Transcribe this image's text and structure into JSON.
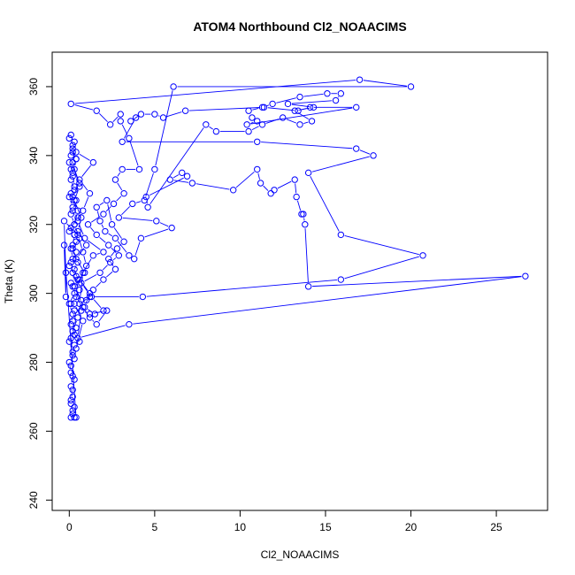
{
  "chart_data": {
    "type": "scatter",
    "title": "ATOM4 Northbound Cl2_NOAACIMS",
    "xlabel": "Cl2_NOAACIMS",
    "ylabel": "Theta (K)",
    "xlim": [
      -1,
      28
    ],
    "ylim": [
      237,
      370
    ],
    "xticks": [
      0,
      5,
      10,
      15,
      20,
      25
    ],
    "yticks": [
      240,
      260,
      280,
      300,
      320,
      340,
      360
    ],
    "grid": false,
    "legend": "none",
    "color": "#0000ff",
    "marker": "open-circle",
    "connect_points": true,
    "series": [
      {
        "values": [
          [
            0.1,
            264
          ],
          [
            0.3,
            264
          ],
          [
            0.2,
            266
          ],
          [
            0.1,
            268
          ],
          [
            0.2,
            270
          ],
          [
            0.1,
            273
          ],
          [
            0.2,
            276
          ],
          [
            0.1,
            279
          ],
          [
            0.3,
            281
          ],
          [
            0.2,
            283
          ],
          [
            0.0,
            286
          ],
          [
            0.3,
            288
          ],
          [
            0.1,
            291
          ],
          [
            0.2,
            294
          ],
          [
            0.0,
            297
          ],
          [
            0.3,
            300
          ],
          [
            0.1,
            303
          ],
          [
            0.4,
            305
          ],
          [
            0.0,
            308
          ],
          [
            0.2,
            310
          ],
          [
            0.1,
            313
          ],
          [
            0.4,
            315
          ],
          [
            0.0,
            318
          ],
          [
            0.3,
            320
          ],
          [
            0.1,
            323
          ],
          [
            0.2,
            325
          ],
          [
            0.0,
            328
          ],
          [
            0.3,
            330
          ],
          [
            0.1,
            333
          ],
          [
            0.2,
            335
          ],
          [
            0.0,
            338
          ],
          [
            0.1,
            340
          ],
          [
            0.2,
            343
          ],
          [
            0.0,
            345
          ],
          [
            0.1,
            346
          ],
          [
            0.3,
            344
          ],
          [
            0.2,
            341
          ],
          [
            0.4,
            339
          ],
          [
            0.1,
            336
          ],
          [
            0.2,
            334
          ],
          [
            0.3,
            331
          ],
          [
            0.1,
            329
          ],
          [
            0.4,
            327
          ],
          [
            0.2,
            324
          ],
          [
            0.5,
            322
          ],
          [
            0.1,
            319
          ],
          [
            0.3,
            317
          ],
          [
            0.2,
            314
          ],
          [
            0.4,
            312
          ],
          [
            0.1,
            309
          ],
          [
            0.3,
            307
          ],
          [
            0.5,
            304
          ],
          [
            0.2,
            302
          ],
          [
            0.4,
            299
          ],
          [
            0.1,
            297
          ],
          [
            0.3,
            295
          ],
          [
            0.2,
            292
          ],
          [
            0.4,
            290
          ],
          [
            0.1,
            287
          ],
          [
            0.3,
            285
          ],
          [
            0.2,
            282
          ],
          [
            0.0,
            280
          ],
          [
            0.1,
            277
          ],
          [
            0.3,
            275
          ],
          [
            0.2,
            272
          ],
          [
            0.1,
            269
          ],
          [
            0.3,
            267
          ],
          [
            0.2,
            265
          ],
          [
            0.4,
            264
          ],
          [
            -0.3,
            314
          ],
          [
            -0.2,
            299
          ],
          [
            -0.2,
            306
          ],
          [
            -0.3,
            321
          ],
          [
            0.5,
            317
          ],
          [
            0.8,
            312
          ],
          [
            1.0,
            308
          ],
          [
            0.6,
            304
          ],
          [
            1.2,
            300
          ],
          [
            0.9,
            296
          ],
          [
            1.5,
            294
          ],
          [
            2.0,
            295
          ],
          [
            1.3,
            299
          ],
          [
            0.7,
            303
          ],
          [
            1.8,
            306
          ],
          [
            2.4,
            309
          ],
          [
            2.9,
            311
          ],
          [
            2.3,
            314
          ],
          [
            1.6,
            317
          ],
          [
            1.1,
            320
          ],
          [
            2.0,
            323
          ],
          [
            2.6,
            326
          ],
          [
            3.2,
            329
          ],
          [
            2.7,
            333
          ],
          [
            3.1,
            336
          ],
          [
            4.1,
            336
          ],
          [
            3.5,
            345
          ],
          [
            3.0,
            350
          ],
          [
            3.0,
            352
          ],
          [
            2.4,
            349
          ],
          [
            1.6,
            353
          ],
          [
            0.1,
            355
          ],
          [
            17.0,
            362
          ],
          [
            20.0,
            360
          ],
          [
            6.1,
            360
          ],
          [
            5.0,
            336
          ],
          [
            4.4,
            327
          ],
          [
            3.7,
            326
          ],
          [
            2.9,
            322
          ],
          [
            5.1,
            321
          ],
          [
            6.0,
            319
          ],
          [
            4.2,
            316
          ],
          [
            3.8,
            310
          ],
          [
            3.5,
            311
          ],
          [
            2.7,
            316
          ],
          [
            2.1,
            318
          ],
          [
            1.8,
            321
          ],
          [
            1.6,
            325
          ],
          [
            2.2,
            327
          ],
          [
            2.5,
            320
          ],
          [
            3.2,
            315
          ],
          [
            2.8,
            313
          ],
          [
            2.3,
            310
          ],
          [
            2.7,
            307
          ],
          [
            2.0,
            304
          ],
          [
            1.4,
            301
          ],
          [
            1.0,
            298
          ],
          [
            0.8,
            296
          ],
          [
            1.2,
            293
          ],
          [
            1.6,
            291
          ],
          [
            2.2,
            295
          ],
          [
            1.2,
            294
          ],
          [
            0.7,
            295
          ],
          [
            0.5,
            287
          ],
          [
            3.5,
            291
          ],
          [
            26.7,
            305
          ],
          [
            14.0,
            302
          ],
          [
            13.8,
            320
          ],
          [
            13.7,
            323
          ],
          [
            13.6,
            323
          ],
          [
            13.3,
            328
          ],
          [
            13.2,
            333
          ],
          [
            12.0,
            330
          ],
          [
            11.8,
            329
          ],
          [
            11.2,
            332
          ],
          [
            11.0,
            336
          ],
          [
            9.6,
            330
          ],
          [
            7.2,
            332
          ],
          [
            5.9,
            333
          ],
          [
            6.6,
            335
          ],
          [
            6.9,
            334
          ],
          [
            4.5,
            328
          ],
          [
            4.6,
            325
          ],
          [
            8.0,
            349
          ],
          [
            8.6,
            347
          ],
          [
            10.5,
            347
          ],
          [
            11.3,
            349
          ],
          [
            12.5,
            351
          ],
          [
            13.5,
            349
          ],
          [
            14.2,
            350
          ],
          [
            13.2,
            353
          ],
          [
            14.3,
            354
          ],
          [
            12.8,
            355
          ],
          [
            15.6,
            356
          ],
          [
            15.9,
            358
          ],
          [
            15.1,
            358
          ],
          [
            13.5,
            357
          ],
          [
            11.9,
            355
          ],
          [
            11.3,
            354
          ],
          [
            10.5,
            353
          ],
          [
            10.7,
            351
          ],
          [
            11.0,
            350
          ],
          [
            10.4,
            349
          ],
          [
            16.8,
            354
          ],
          [
            14.1,
            354
          ],
          [
            13.4,
            353
          ],
          [
            11.4,
            354
          ],
          [
            6.8,
            353
          ],
          [
            5.5,
            351
          ],
          [
            5.0,
            352
          ],
          [
            4.2,
            352
          ],
          [
            3.6,
            350
          ],
          [
            3.9,
            351
          ],
          [
            3.1,
            344
          ],
          [
            11.0,
            344
          ],
          [
            16.8,
            342
          ],
          [
            17.8,
            340
          ],
          [
            14.0,
            335
          ],
          [
            15.9,
            317
          ],
          [
            20.7,
            311
          ],
          [
            15.9,
            304
          ],
          [
            4.3,
            299
          ],
          [
            1.2,
            299
          ],
          [
            0.6,
            297
          ],
          [
            0.8,
            306
          ],
          [
            1.4,
            311
          ],
          [
            2.0,
            312
          ],
          [
            0.9,
            316
          ],
          [
            0.5,
            321
          ],
          [
            0.8,
            324
          ],
          [
            1.2,
            329
          ],
          [
            0.6,
            333
          ],
          [
            1.4,
            338
          ],
          [
            0.4,
            341
          ],
          [
            0.2,
            338
          ],
          [
            0.6,
            331
          ],
          [
            0.3,
            327
          ],
          [
            0.7,
            322
          ],
          [
            0.5,
            318
          ],
          [
            1.0,
            314
          ],
          [
            0.4,
            310
          ],
          [
            0.9,
            306
          ],
          [
            0.3,
            302
          ],
          [
            0.7,
            298
          ],
          [
            0.5,
            293
          ],
          [
            0.2,
            289
          ],
          [
            0.6,
            286
          ],
          [
            0.4,
            284
          ],
          [
            0.8,
            292
          ],
          [
            0.3,
            297
          ],
          [
            0.6,
            301
          ],
          [
            0.2,
            306
          ],
          [
            0.5,
            309
          ],
          [
            0.2,
            313
          ],
          [
            0.6,
            316
          ],
          [
            0.3,
            320
          ],
          [
            0.5,
            324
          ],
          [
            0.2,
            328
          ],
          [
            0.6,
            332
          ],
          [
            0.3,
            336
          ],
          [
            0.4,
            339
          ],
          [
            0.2,
            342
          ]
        ]
      }
    ]
  }
}
